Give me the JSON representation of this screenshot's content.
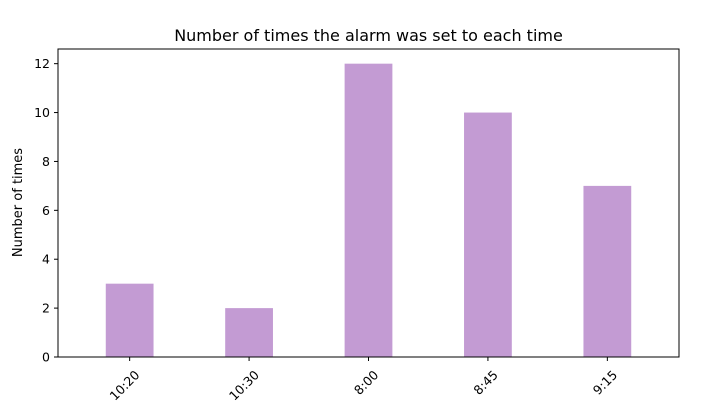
{
  "chart_data": {
    "type": "bar",
    "title": "Number of times the alarm was set to each time",
    "xlabel": "",
    "ylabel": "Number of times",
    "categories": [
      "10:20",
      "10:30",
      "8:00",
      "8:45",
      "9:15"
    ],
    "values": [
      3,
      2,
      12,
      10,
      7
    ],
    "ylim": [
      0,
      12.6
    ],
    "yticks": [
      0,
      2,
      4,
      6,
      8,
      10,
      12
    ],
    "bar_color": "#c39bd3",
    "grid": false,
    "legend": "none"
  }
}
